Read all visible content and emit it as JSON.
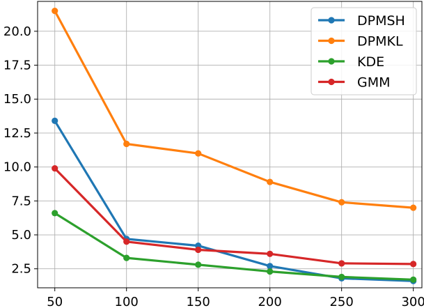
{
  "chart_data": {
    "type": "line",
    "x": [
      50,
      100,
      150,
      200,
      250,
      300
    ],
    "xticks": [
      "50",
      "100",
      "150",
      "200",
      "250",
      "300"
    ],
    "yticks": [
      "2.5",
      "5.0",
      "7.5",
      "10.0",
      "12.5",
      "15.0",
      "17.5",
      "20.0"
    ],
    "xlim": [
      38,
      306
    ],
    "ylim": [
      1.1,
      22.2
    ],
    "grid": true,
    "legend_position": "top-right",
    "series": [
      {
        "name": "DPMSH",
        "color": "#1f77b4",
        "values": [
          13.4,
          4.7,
          4.2,
          2.7,
          1.8,
          1.6
        ]
      },
      {
        "name": "DPMKL",
        "color": "#ff7f0e",
        "values": [
          21.5,
          11.7,
          11.0,
          8.9,
          7.4,
          7.0
        ]
      },
      {
        "name": "KDE",
        "color": "#2ca02c",
        "values": [
          6.6,
          3.3,
          2.8,
          2.3,
          1.9,
          1.7
        ]
      },
      {
        "name": "GMM",
        "color": "#d62728",
        "values": [
          9.9,
          4.5,
          3.9,
          3.6,
          2.9,
          2.85
        ]
      }
    ]
  }
}
